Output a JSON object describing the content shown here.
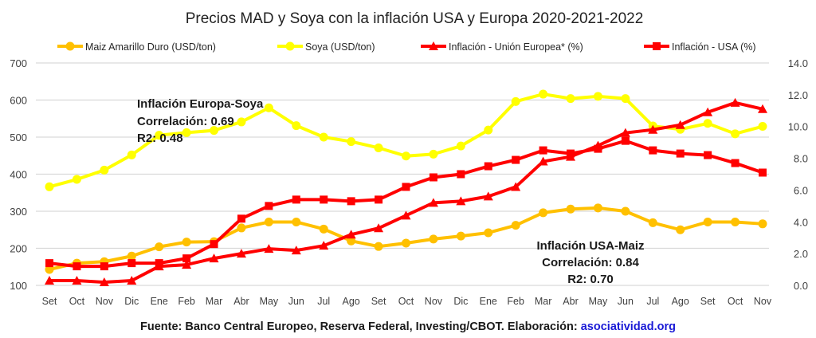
{
  "chart_data": {
    "type": "line",
    "title": "Precios MAD y Soya con la inflación USA y Europa 2020-2021-2022",
    "categories": [
      "Set",
      "Oct",
      "Nov",
      "Dic",
      "Ene",
      "Feb",
      "Mar",
      "Abr",
      "May",
      "Jun",
      "Jul",
      "Ago",
      "Set",
      "Oct",
      "Nov",
      "Dic",
      "Ene",
      "Feb",
      "Mar",
      "Abr",
      "May",
      "Jun",
      "Jul",
      "Ago",
      "Set",
      "Oct",
      "Nov"
    ],
    "y_left": {
      "ylim": [
        100,
        700
      ],
      "ticks": [
        "100",
        "200",
        "300",
        "400",
        "500",
        "600",
        "700"
      ],
      "label": ""
    },
    "y_right": {
      "ylim": [
        0,
        14
      ],
      "ticks": [
        "0.0",
        "2.0",
        "4.0",
        "6.0",
        "8.0",
        "10.0",
        "12.0",
        "14.0"
      ],
      "label": ""
    },
    "grid": true,
    "legend_position": "top",
    "series": [
      {
        "name": "Maiz Amarillo Duro (USD/ton)",
        "axis": "left",
        "marker": "circle",
        "color": "#FFC000",
        "values": [
          143,
          160,
          164,
          179,
          204,
          217,
          218,
          255,
          271,
          271,
          252,
          220,
          205,
          214,
          225,
          233,
          242,
          262,
          296,
          306,
          309,
          300,
          269,
          250,
          271,
          271,
          266
        ]
      },
      {
        "name": "Soya (USD/ton)",
        "axis": "left",
        "marker": "circle",
        "color": "#FFFF00",
        "values": [
          366,
          386,
          411,
          452,
          505,
          512,
          518,
          541,
          579,
          531,
          500,
          488,
          471,
          449,
          454,
          476,
          519,
          596,
          616,
          604,
          610,
          604,
          530,
          521,
          537,
          509,
          529
        ]
      },
      {
        "name": "Inflación - Unión Europea* (%)",
        "axis": "right",
        "marker": "triangle",
        "color": "#FF0000",
        "values": [
          0.3,
          0.3,
          0.2,
          0.3,
          1.2,
          1.3,
          1.7,
          2.0,
          2.3,
          2.2,
          2.5,
          3.2,
          3.6,
          4.4,
          5.2,
          5.3,
          5.6,
          6.2,
          7.8,
          8.1,
          8.8,
          9.6,
          9.8,
          10.1,
          10.9,
          11.5,
          11.1
        ]
      },
      {
        "name": "Inflación - USA (%)",
        "axis": "right",
        "marker": "square",
        "color": "#FF0000",
        "values": [
          1.4,
          1.2,
          1.2,
          1.4,
          1.4,
          1.7,
          2.6,
          4.2,
          5.0,
          5.4,
          5.4,
          5.3,
          5.4,
          6.2,
          6.8,
          7.0,
          7.5,
          7.9,
          8.5,
          8.3,
          8.6,
          9.1,
          8.5,
          8.3,
          8.2,
          7.7,
          7.1
        ]
      }
    ],
    "annotations": [
      {
        "lines": [
          "Inflación Europa-Soya",
          "Correlación: 0.69",
          "R2: 0.48"
        ],
        "align": "left"
      },
      {
        "lines": [
          "Inflación USA-Maiz",
          "Correlación: 0.84",
          "R2: 0.70"
        ],
        "align": "center"
      }
    ],
    "source": {
      "text": "Fuente: Banco Central Europeo, Reserva Federal, Investing/CBOT. Elaboración: ",
      "link": "asociatividad.org"
    }
  }
}
